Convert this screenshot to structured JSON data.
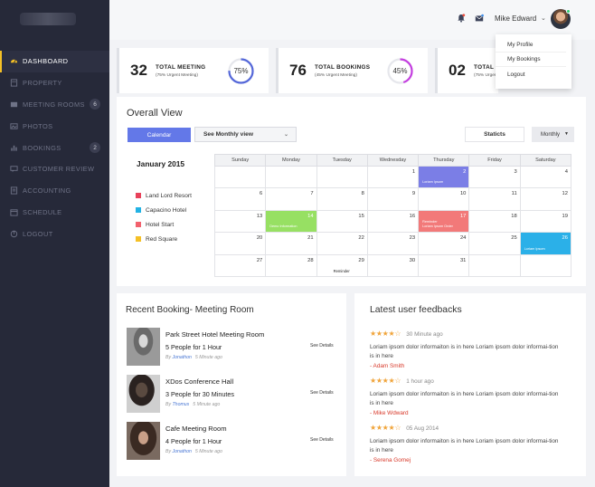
{
  "sidebar": {
    "items": [
      {
        "label": "DASHBOARD",
        "icon": "gauge-icon",
        "active": true,
        "badge": ""
      },
      {
        "label": "PROPERTY",
        "icon": "property-icon",
        "active": false,
        "badge": ""
      },
      {
        "label": "MEETING ROOMS",
        "icon": "meeting-room-icon",
        "active": false,
        "badge": "6"
      },
      {
        "label": "PHOTOS",
        "icon": "photos-icon",
        "active": false,
        "badge": ""
      },
      {
        "label": "BOOKINGS",
        "icon": "bar-chart-icon",
        "active": false,
        "badge": "2"
      },
      {
        "label": "CUSTOMER REVIEW",
        "icon": "review-icon",
        "active": false,
        "badge": ""
      },
      {
        "label": "ACCOUNTING",
        "icon": "accounting-icon",
        "active": false,
        "badge": ""
      },
      {
        "label": "SCHEDULE",
        "icon": "schedule-icon",
        "active": false,
        "badge": ""
      },
      {
        "label": "LOGOUT",
        "icon": "logout-icon",
        "active": false,
        "badge": ""
      }
    ]
  },
  "header": {
    "user_name": "Mike Edward",
    "menu": [
      "My Profile",
      "My Bookings",
      "Logout"
    ]
  },
  "stats": [
    {
      "number": "32",
      "label": "TOTAL MEETING",
      "sub": "(75% Urgent Meeting)",
      "percent": 75,
      "percent_label": "75%",
      "color": "#5568d9"
    },
    {
      "number": "76",
      "label": "TOTAL BOOKINGS",
      "sub": "(45% Urgent Meeting)",
      "percent": 45,
      "percent_label": "45%",
      "color": "#c43fe0"
    },
    {
      "number": "02",
      "label": "TOTAL CA",
      "sub": "(75% Urgent Meeting)",
      "percent": 0,
      "percent_label": "",
      "color": "#2ecc71"
    }
  ],
  "overview": {
    "title": "Overall View",
    "calendar_button": "Calendar",
    "view_select": "See Monthly view",
    "statics_button": "Staticts",
    "period_select": "Monthly",
    "month": "January 2015",
    "legend": [
      {
        "label": "Land Lord Resort",
        "color": "#e8415a"
      },
      {
        "label": "Capacino Hotel",
        "color": "#22b2e4"
      },
      {
        "label": "Hotel Start",
        "color": "#f2616d"
      },
      {
        "label": "Red Square",
        "color": "#f5c026"
      }
    ],
    "weekdays": [
      "Sunday",
      "Monday",
      "Tuesday",
      "Wednesday",
      "Thursday",
      "Friday",
      "Saturday"
    ],
    "weeks": [
      [
        {
          "d": ""
        },
        {
          "d": ""
        },
        {
          "d": ""
        },
        {
          "d": "1"
        },
        {
          "d": "2",
          "event": "Loriam Ipsom",
          "color": "#7b7ee6"
        },
        {
          "d": "3"
        },
        {
          "d": "4"
        }
      ],
      [
        {
          "d": "6"
        },
        {
          "d": "7"
        },
        {
          "d": "8"
        },
        {
          "d": "9"
        },
        {
          "d": "10"
        },
        {
          "d": "11"
        },
        {
          "d": "12"
        }
      ],
      [
        {
          "d": "13"
        },
        {
          "d": "14",
          "event": "Demo Information",
          "color": "#97e063"
        },
        {
          "d": "15"
        },
        {
          "d": "16"
        },
        {
          "d": "17",
          "event": "Reminder\nLoriam Ipsom Order",
          "color": "#f27979"
        },
        {
          "d": "18"
        },
        {
          "d": "19"
        }
      ],
      [
        {
          "d": "20"
        },
        {
          "d": "21"
        },
        {
          "d": "22"
        },
        {
          "d": "23"
        },
        {
          "d": "24"
        },
        {
          "d": "25"
        },
        {
          "d": "26",
          "event": "Loriam Ipsom",
          "color": "#2bb0e8"
        }
      ],
      [
        {
          "d": "27"
        },
        {
          "d": "28"
        },
        {
          "d": "29",
          "note": "Reminder"
        },
        {
          "d": "30"
        },
        {
          "d": "31"
        },
        {
          "d": ""
        },
        {
          "d": ""
        }
      ]
    ]
  },
  "bookings": {
    "title": "Recent Booking- Meeting Room",
    "items": [
      {
        "name": "Park Street Hotel Meeting Room",
        "people": "5 People for 1 Hour",
        "by_prefix": "By",
        "by": "Jonathon",
        "time": "5 Minute ago",
        "action": "See Details"
      },
      {
        "name": "XDos Conference Hall",
        "people": "3 People for 30 Minutes",
        "by_prefix": "By",
        "by": "Thomus",
        "time": "5 Minute ago",
        "action": "See Details"
      },
      {
        "name": "Cafe Meeting Room",
        "people": "4 People for 1 Hour",
        "by_prefix": "By",
        "by": "Jonathon",
        "time": "5 Minute ago",
        "action": "See Details"
      }
    ]
  },
  "feedbacks": {
    "title": "Latest user feedbacks",
    "items": [
      {
        "stars": "★★★★☆",
        "time": "30 Minute ago",
        "text": "Loriam ipsom dolor informaiton is in here Loriam ipsom dolor informai-tion is in here",
        "author": "- Adam Smith"
      },
      {
        "stars": "★★★★☆",
        "time": "1 hour ago",
        "text": "Loriam ipsom dolor informaiton is in here Loriam ipsom dolor informai-tion is in here",
        "author": "- Mike Wdward"
      },
      {
        "stars": "★★★★☆",
        "time": "05 Aug 2014",
        "text": "Loriam ipsom dolor informaiton is in here Loriam ipsom dolor informai-tion is in here",
        "author": "- Serena Gomej"
      }
    ]
  }
}
